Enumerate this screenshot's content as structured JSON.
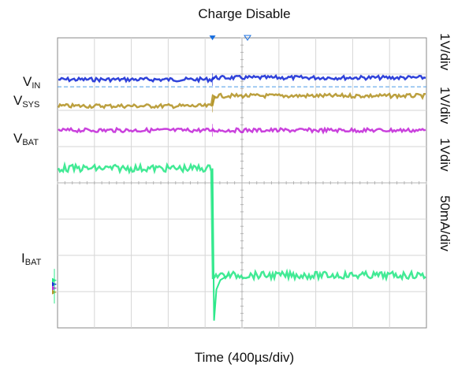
{
  "chart_data": {
    "type": "line",
    "title": "Charge Disable",
    "xlabel": "Time (400µs/div)",
    "x_divisions": 10,
    "y_divisions": 8,
    "trigger_division": 4.2,
    "channels": [
      {
        "name": "V_IN",
        "label_main": "V",
        "label_sub": "IN",
        "scale": "1V/div",
        "color": "#1a2fd6",
        "levels_div": {
          "before": 6.85,
          "after": 6.9
        }
      },
      {
        "name": "V_SYS",
        "label_main": "V",
        "label_sub": "SYS",
        "scale": "1V/div",
        "color": "#b5962a",
        "levels_div": {
          "before": 6.12,
          "after": 6.4
        }
      },
      {
        "name": "V_BAT",
        "label_main": "V",
        "label_sub": "BAT",
        "scale": "1Vdiv",
        "color": "#c42ed9",
        "levels_div": {
          "before": 5.45,
          "after": 5.45
        }
      },
      {
        "name": "I_BAT",
        "label_main": "I",
        "label_sub": "BAT",
        "scale": "50mA/div",
        "color": "#2de88a",
        "levels_div": {
          "before": 4.4,
          "after": 1.45
        }
      }
    ]
  }
}
